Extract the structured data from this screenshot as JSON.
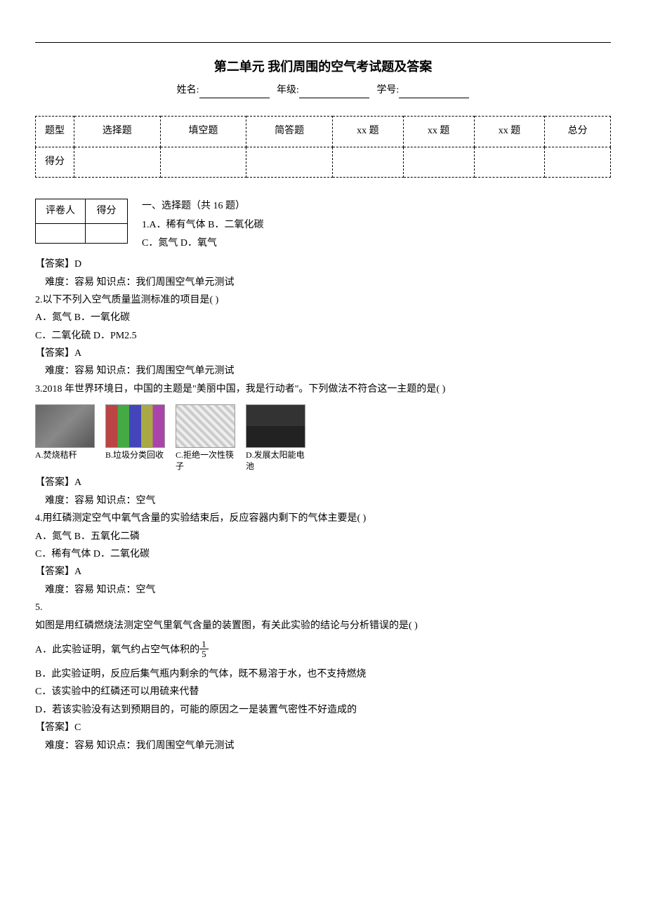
{
  "header": {
    "title": "第二单元   我们周围的空气考试题及答案",
    "name_label": "姓名:",
    "grade_label": "年级:",
    "id_label": "学号:"
  },
  "score_table": {
    "row1": [
      "题型",
      "选择题",
      "填空题",
      "简答题",
      "xx 题",
      "xx 题",
      "xx 题",
      "总分"
    ],
    "row2_label": "得分"
  },
  "grader": {
    "reviewer": "评卷人",
    "score": "得分"
  },
  "section1": {
    "header": "一、选择题（共 16 题）",
    "q1_line1": "1.A．稀有气体 B．二氧化碳",
    "q1_line2": "C．氮气 D．氧气",
    "q1_answer": "【答案】D",
    "q1_meta": "难度：容易      知识点：我们周围空气单元测试",
    "q2_text": "2.以下不列入空气质量监测标准的项目是(      )",
    "q2_optA": "A．氮气 B．一氧化碳",
    "q2_optC": "C．二氧化硫 D．PM2.5",
    "q2_answer": "【答案】A",
    "q2_meta": "难度：容易      知识点：我们周围空气单元测试",
    "q3_text": "3.2018 年世界环境日，中国的主题是\"美丽中国，我是行动者\"。下列做法不符合这一主题的是(      )",
    "q3_options": {
      "a": "A.焚烧秸秆",
      "b": "B.垃圾分类回收",
      "c": "C.拒绝一次性筷子",
      "d": "D.发展太阳能电池"
    },
    "q3_answer": "【答案】A",
    "q3_meta": "难度：容易      知识点：空气",
    "q4_text": "4.用红磷测定空气中氧气含量的实验结束后，反应容器内剩下的气体主要是(      )",
    "q4_optA": "A．氮气 B．五氧化二磷",
    "q4_optC": "C．稀有气体 D．二氧化碳",
    "q4_answer": "【答案】A",
    "q4_meta": "难度：容易      知识点：空气",
    "q5_num": "5.",
    "q5_text": "如图是用红磷燃烧法测定空气里氧气含量的装置图，有关此实验的结论与分析错误的是(      )",
    "q5_optA_pre": "A．此实验证明，氧气约占空气体积的",
    "q5_frac_num": "1",
    "q5_frac_den": "5",
    "q5_optB": "B．此实验证明，反应后集气瓶内剩余的气体，既不易溶于水，也不支持燃烧",
    "q5_optC": "C．该实验中的红磷还可以用硫来代替",
    "q5_optD": "D．若该实验没有达到预期目的，可能的原因之一是装置气密性不好造成的",
    "q5_answer": "【答案】C",
    "q5_meta": "难度：容易      知识点：我们周围空气单元测试"
  }
}
